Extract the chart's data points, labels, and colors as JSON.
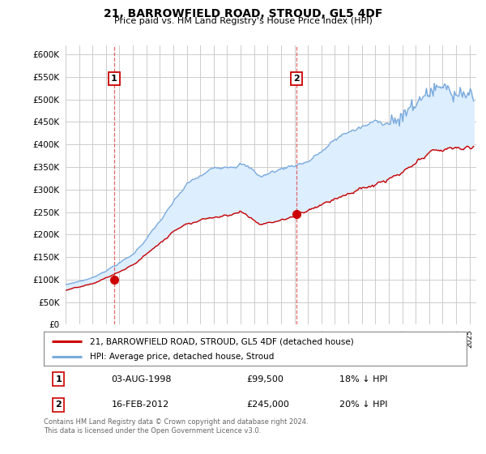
{
  "title": "21, BARROWFIELD ROAD, STROUD, GL5 4DF",
  "subtitle": "Price paid vs. HM Land Registry's House Price Index (HPI)",
  "ylim": [
    0,
    620000
  ],
  "yticks": [
    0,
    50000,
    100000,
    150000,
    200000,
    250000,
    300000,
    350000,
    400000,
    450000,
    500000,
    550000,
    600000
  ],
  "xlim_start": 1995.0,
  "xlim_end": 2025.5,
  "point1_x": 1998.583,
  "point1_y": 99500,
  "point1_label": "1",
  "point1_date": "03-AUG-1998",
  "point1_price": "£99,500",
  "point1_hpi": "18% ↓ HPI",
  "point2_x": 2012.12,
  "point2_y": 245000,
  "point2_label": "2",
  "point2_date": "16-FEB-2012",
  "point2_price": "£245,000",
  "point2_hpi": "20% ↓ HPI",
  "legend_property": "21, BARROWFIELD ROAD, STROUD, GL5 4DF (detached house)",
  "legend_hpi": "HPI: Average price, detached house, Stroud",
  "property_color": "#cc0000",
  "hpi_color": "#7aaadd",
  "fill_color": "#ddeeff",
  "footer": "Contains HM Land Registry data © Crown copyright and database right 2024.\nThis data is licensed under the Open Government Licence v3.0.",
  "background_color": "#ffffff",
  "grid_color": "#cccccc",
  "vline_color": "#dd4444"
}
